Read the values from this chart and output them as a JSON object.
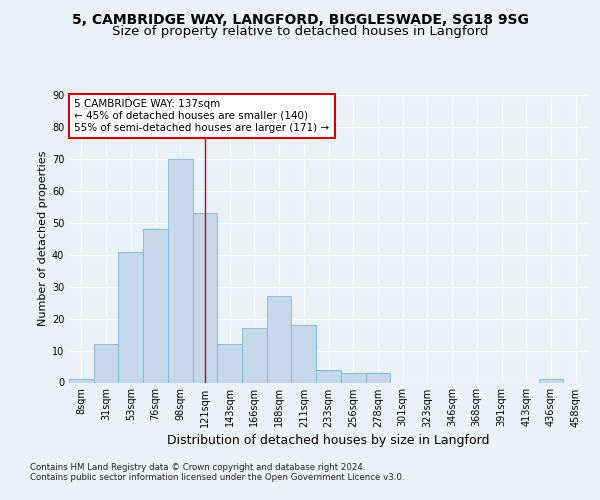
{
  "title_line1": "5, CAMBRIDGE WAY, LANGFORD, BIGGLESWADE, SG18 9SG",
  "title_line2": "Size of property relative to detached houses in Langford",
  "xlabel": "Distribution of detached houses by size in Langford",
  "ylabel": "Number of detached properties",
  "footnote": "Contains HM Land Registry data © Crown copyright and database right 2024.\nContains public sector information licensed under the Open Government Licence v3.0.",
  "bar_labels": [
    "8sqm",
    "31sqm",
    "53sqm",
    "76sqm",
    "98sqm",
    "121sqm",
    "143sqm",
    "166sqm",
    "188sqm",
    "211sqm",
    "233sqm",
    "256sqm",
    "278sqm",
    "301sqm",
    "323sqm",
    "346sqm",
    "368sqm",
    "391sqm",
    "413sqm",
    "436sqm",
    "458sqm"
  ],
  "bar_values": [
    1,
    12,
    41,
    48,
    70,
    53,
    12,
    17,
    27,
    18,
    4,
    3,
    3,
    0,
    0,
    0,
    0,
    0,
    0,
    1,
    0
  ],
  "bar_color": "#c5d8ea",
  "bar_edge_color": "#7ab5d8",
  "annotation_line1": "5 CAMBRIDGE WAY: 137sqm",
  "annotation_line2": "← 45% of detached houses are smaller (140)",
  "annotation_line3": "55% of semi-detached houses are larger (171) →",
  "annotation_box_color": "#ffffff",
  "annotation_border_color": "#cc0000",
  "vline_color": "#cc0000",
  "vline_x": 5.0,
  "ylim": [
    0,
    90
  ],
  "yticks": [
    0,
    10,
    20,
    30,
    40,
    50,
    60,
    70,
    80,
    90
  ],
  "bg_color": "#eaf2f8",
  "plot_bg_color": "#eaf2f8",
  "grid_color": "#ffffff",
  "title_fontsize": 10,
  "subtitle_fontsize": 9.5,
  "ylabel_fontsize": 8,
  "xlabel_fontsize": 9,
  "tick_fontsize": 7,
  "annotation_fontsize": 7.5
}
